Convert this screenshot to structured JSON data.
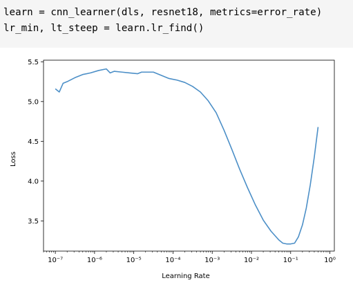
{
  "code_cell": {
    "lines": [
      "learn = cnn_learner(dls, resnet18, metrics=error_rate)",
      "lr_min, lt_steep = learn.lr_find()"
    ]
  },
  "chart_data": {
    "type": "line",
    "title": "",
    "xlabel": "Learning Rate",
    "ylabel": "Loss",
    "xscale": "log",
    "xlim": [
      5e-08,
      1.3
    ],
    "ylim": [
      3.12,
      5.52
    ],
    "xticks": [
      {
        "value": 1e-07,
        "label": "10⁻⁷"
      },
      {
        "value": 1e-06,
        "label": "10⁻⁶"
      },
      {
        "value": 1e-05,
        "label": "10⁻⁵"
      },
      {
        "value": 0.0001,
        "label": "10⁻⁴"
      },
      {
        "value": 0.001,
        "label": "10⁻³"
      },
      {
        "value": 0.01,
        "label": "10⁻²"
      },
      {
        "value": 0.1,
        "label": "10⁻¹"
      },
      {
        "value": 1,
        "label": "10⁰"
      }
    ],
    "yticks": [
      {
        "value": 3.5,
        "label": "3.5"
      },
      {
        "value": 4.0,
        "label": "4.0"
      },
      {
        "value": 4.5,
        "label": "4.5"
      },
      {
        "value": 5.0,
        "label": "5.0"
      },
      {
        "value": 5.5,
        "label": "5.5"
      }
    ],
    "grid": false,
    "line_color": "#4c8fc7",
    "series": [
      {
        "x": [
          1e-07,
          1.26e-07,
          1.58e-07,
          2e-07,
          3.16e-07,
          5e-07,
          7.9e-07,
          1.26e-06,
          2e-06,
          2.5e-06,
          3.16e-06,
          5e-06,
          7.9e-06,
          1.26e-05,
          1.58e-05,
          2e-05,
          3.16e-05,
          5e-05,
          7.9e-05,
          0.000126,
          0.0002,
          0.000316,
          0.0005,
          0.00079,
          0.00126,
          0.002,
          0.00316,
          0.005,
          0.0079,
          0.0126,
          0.02,
          0.0316,
          0.05,
          0.063,
          0.079,
          0.1,
          0.126,
          0.158,
          0.2,
          0.25,
          0.316,
          0.4,
          0.5
        ],
        "y": [
          5.16,
          5.12,
          5.23,
          5.25,
          5.3,
          5.34,
          5.36,
          5.39,
          5.41,
          5.36,
          5.38,
          5.37,
          5.36,
          5.35,
          5.37,
          5.37,
          5.37,
          5.33,
          5.29,
          5.27,
          5.24,
          5.19,
          5.12,
          5.01,
          4.86,
          4.64,
          4.4,
          4.15,
          3.92,
          3.7,
          3.51,
          3.37,
          3.26,
          3.22,
          3.21,
          3.21,
          3.22,
          3.3,
          3.45,
          3.66,
          3.95,
          4.3,
          4.68
        ]
      }
    ]
  }
}
